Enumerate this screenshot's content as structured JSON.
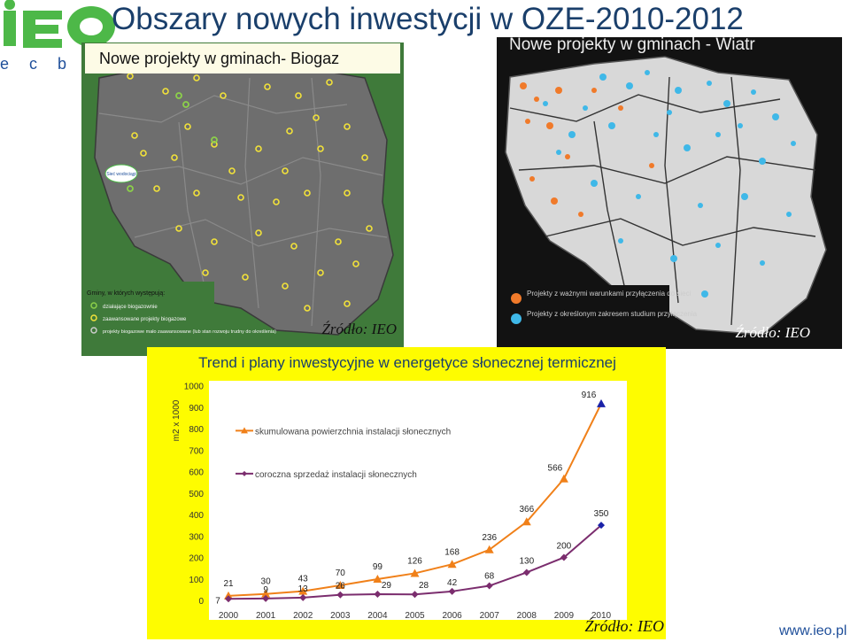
{
  "header": {
    "logo_text": "IEO",
    "title": "Obszary nowych inwestycji w OZE-2010-2012",
    "tagline": "e c b r"
  },
  "biogaz_map": {
    "title": "Nowe projekty w gminach-  Biogaz",
    "inset_label": "Sieć wodociągi",
    "legend_title": "Gminy, w których występują:",
    "legend_items": [
      "działające biogazownie",
      "zaawansowane projekty biogazowe",
      "projekty biogazowe mało zaawansowane (lub stan rozwoju trudny do określenia)"
    ],
    "source": "Źródło: IEO",
    "colors": {
      "background": "#3f7a3a",
      "land": "#6e6e6e",
      "marker": "#f2e23a",
      "marker_active": "#8cd04a"
    }
  },
  "wind_map": {
    "title": "Nowe projekty w gminach - Wiatr",
    "legend_items": [
      "Projekty z ważnymi warunkami przyłączenia do sieci",
      "Projekty z określonym zakresem studium przyłączenia"
    ],
    "source": "Źródło: IEO",
    "colors": {
      "background": "#121212",
      "land": "#d8d8d8",
      "orange": "#f07a2a",
      "cyan": "#3fb8e8"
    }
  },
  "solar": {
    "heading": "Trend i plany inwestycyjne w energetyce słonecznej termicznej",
    "source": "Źródło: IEO",
    "background": "#fefc00"
  },
  "footer": {
    "site": "www.ieo.pl"
  },
  "chart_data": {
    "type": "line",
    "title": "Trend i plany inwestycyjne w energetyce słonecznej termicznej",
    "xlabel": "",
    "ylabel": "m2 x 1000",
    "x": [
      "2000",
      "2001",
      "2002",
      "2003",
      "2004",
      "2005",
      "2006",
      "2007",
      "2008",
      "2009",
      "2010"
    ],
    "ylim": [
      0,
      1000
    ],
    "yticks": [
      0,
      100,
      200,
      300,
      400,
      500,
      600,
      700,
      800,
      900,
      1000
    ],
    "grid": false,
    "series": [
      {
        "name": "skumulowana powierzchnia instalacji słonecznych",
        "values": [
          21,
          30,
          43,
          70,
          99,
          126,
          168,
          236,
          366,
          566,
          916
        ],
        "color": "#f08019",
        "marker": "triangle",
        "last_point_color": "#1a22a8"
      },
      {
        "name": "coroczna sprzedaż instalacji słonecznych",
        "values": [
          7,
          9,
          13,
          26,
          29,
          28,
          42,
          68,
          130,
          200,
          350
        ],
        "color": "#7b2d6e",
        "marker": "diamond",
        "last_point_color": "#1a22a8"
      }
    ],
    "data_labels": {
      "skumulowana": [
        "21",
        "30",
        "43",
        "70",
        "99",
        "126",
        "168",
        "236",
        "366",
        "566",
        "916"
      ],
      "coroczna": [
        "7",
        "9",
        "13",
        "26",
        "29",
        "28",
        "42",
        "68",
        "130",
        "200",
        "350"
      ]
    }
  }
}
